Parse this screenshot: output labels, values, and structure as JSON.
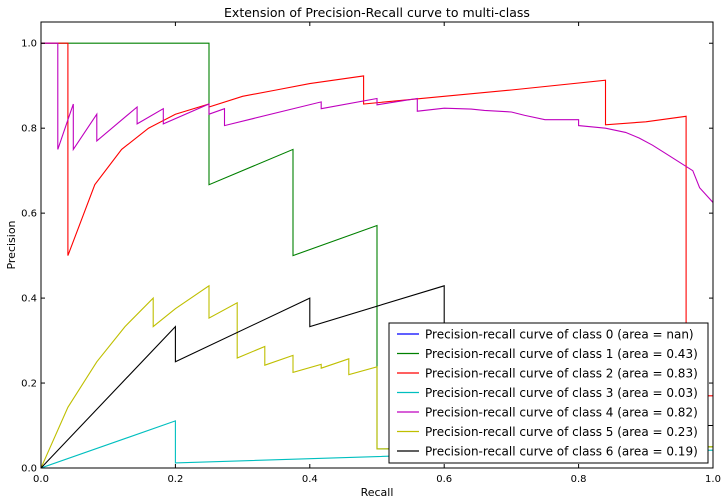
{
  "chart_data": {
    "type": "line",
    "title": "Extension of Precision-Recall curve to multi-class",
    "xlabel": "Recall",
    "ylabel": "Precision",
    "xlim": [
      0.0,
      1.0
    ],
    "ylim": [
      0.0,
      1.05
    ],
    "xticks": [
      "0.0",
      "0.2",
      "0.4",
      "0.6",
      "0.8",
      "1.0"
    ],
    "yticks": [
      "0.0",
      "0.2",
      "0.4",
      "0.6",
      "0.8",
      "1.0"
    ],
    "grid": false,
    "legend_position": "lower-right",
    "series": [
      {
        "name": "Precision-recall curve of class 0 (area = nan)",
        "color": "#0000ff",
        "points": []
      },
      {
        "name": "Precision-recall curve of class 1 (area = 0.43)",
        "color": "#008000",
        "points": [
          [
            0.0,
            1.0
          ],
          [
            0.25,
            1.0
          ],
          [
            0.25,
            0.667
          ],
          [
            0.375,
            0.75
          ],
          [
            0.375,
            0.5
          ],
          [
            0.5,
            0.571
          ],
          [
            0.5,
            0.045
          ],
          [
            1.0,
            0.05
          ]
        ]
      },
      {
        "name": "Precision-recall curve of class 2 (area = 0.83)",
        "color": "#ff0000",
        "points": [
          [
            0.0,
            1.0
          ],
          [
            0.04,
            1.0
          ],
          [
            0.04,
            0.5
          ],
          [
            0.08,
            0.667
          ],
          [
            0.12,
            0.75
          ],
          [
            0.16,
            0.8
          ],
          [
            0.2,
            0.833
          ],
          [
            0.25,
            0.857
          ],
          [
            0.25,
            0.85
          ],
          [
            0.3,
            0.875
          ],
          [
            0.35,
            0.89
          ],
          [
            0.4,
            0.905
          ],
          [
            0.48,
            0.923
          ],
          [
            0.48,
            0.857
          ],
          [
            0.6,
            0.875
          ],
          [
            0.7,
            0.89
          ],
          [
            0.84,
            0.913
          ],
          [
            0.84,
            0.808
          ],
          [
            0.9,
            0.815
          ],
          [
            0.96,
            0.828
          ],
          [
            0.96,
            0.17
          ],
          [
            1.0,
            0.17
          ]
        ]
      },
      {
        "name": "Precision-recall curve of class 3 (area = 0.03)",
        "color": "#00bfbf",
        "points": [
          [
            0.0,
            0.0
          ],
          [
            0.2,
            0.111
          ],
          [
            0.2,
            0.012
          ],
          [
            0.4,
            0.022
          ],
          [
            0.6,
            0.032
          ],
          [
            0.8,
            0.038
          ],
          [
            1.0,
            0.042
          ]
        ]
      },
      {
        "name": "Precision-recall curve of class 4 (area = 0.82)",
        "color": "#bf00bf",
        "points": [
          [
            0.0,
            1.0
          ],
          [
            0.025,
            1.0
          ],
          [
            0.025,
            0.75
          ],
          [
            0.048,
            0.857
          ],
          [
            0.048,
            0.75
          ],
          [
            0.083,
            0.833
          ],
          [
            0.083,
            0.77
          ],
          [
            0.143,
            0.85
          ],
          [
            0.143,
            0.81
          ],
          [
            0.182,
            0.846
          ],
          [
            0.182,
            0.81
          ],
          [
            0.25,
            0.857
          ],
          [
            0.25,
            0.833
          ],
          [
            0.273,
            0.846
          ],
          [
            0.273,
            0.806
          ],
          [
            0.417,
            0.862
          ],
          [
            0.417,
            0.846
          ],
          [
            0.5,
            0.87
          ],
          [
            0.5,
            0.855
          ],
          [
            0.56,
            0.87
          ],
          [
            0.56,
            0.84
          ],
          [
            0.6,
            0.847
          ],
          [
            0.64,
            0.845
          ],
          [
            0.66,
            0.842
          ],
          [
            0.7,
            0.838
          ],
          [
            0.72,
            0.83
          ],
          [
            0.75,
            0.82
          ],
          [
            0.8,
            0.82
          ],
          [
            0.8,
            0.806
          ],
          [
            0.84,
            0.8
          ],
          [
            0.87,
            0.79
          ],
          [
            0.89,
            0.777
          ],
          [
            0.91,
            0.76
          ],
          [
            0.93,
            0.74
          ],
          [
            0.95,
            0.72
          ],
          [
            0.97,
            0.7
          ],
          [
            0.98,
            0.66
          ],
          [
            1.0,
            0.625
          ]
        ]
      },
      {
        "name": "Precision-recall curve of class 5 (area = 0.23)",
        "color": "#bfbf00",
        "points": [
          [
            0.0,
            0.0
          ],
          [
            0.04,
            0.143
          ],
          [
            0.083,
            0.25
          ],
          [
            0.125,
            0.333
          ],
          [
            0.167,
            0.4
          ],
          [
            0.167,
            0.333
          ],
          [
            0.2,
            0.375
          ],
          [
            0.25,
            0.429
          ],
          [
            0.25,
            0.353
          ],
          [
            0.292,
            0.389
          ],
          [
            0.292,
            0.259
          ],
          [
            0.333,
            0.286
          ],
          [
            0.333,
            0.242
          ],
          [
            0.375,
            0.265
          ],
          [
            0.375,
            0.225
          ],
          [
            0.417,
            0.244
          ],
          [
            0.417,
            0.235
          ],
          [
            0.458,
            0.257
          ],
          [
            0.458,
            0.22
          ],
          [
            0.5,
            0.238
          ],
          [
            0.5,
            0.045
          ],
          [
            1.0,
            0.05
          ]
        ]
      },
      {
        "name": "Precision-recall curve of class 6 (area = 0.19)",
        "color": "#000000",
        "points": [
          [
            0.0,
            0.0
          ],
          [
            0.2,
            0.333
          ],
          [
            0.2,
            0.25
          ],
          [
            0.4,
            0.4
          ],
          [
            0.4,
            0.333
          ],
          [
            0.6,
            0.429
          ],
          [
            0.6,
            0.1
          ],
          [
            1.0,
            0.1
          ]
        ]
      }
    ]
  }
}
